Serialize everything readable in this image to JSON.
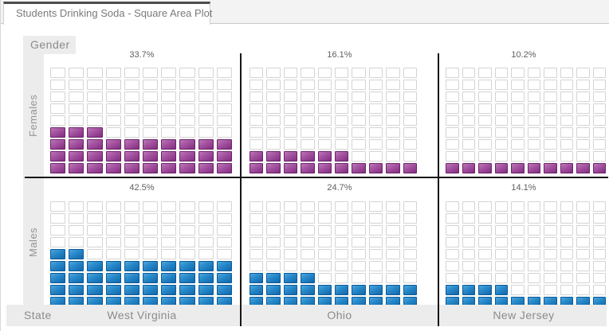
{
  "window": {
    "tab_title": "Students Drinking Soda - Square Area Plot"
  },
  "chart_data": {
    "type": "waffle",
    "title": "Students Drinking Soda - Square Area Plot",
    "row_dimension": {
      "label": "Gender",
      "categories": [
        "Females",
        "Males"
      ]
    },
    "col_dimension": {
      "label": "State",
      "categories": [
        "West Virginia",
        "Ohio",
        "New Jersey"
      ]
    },
    "grid": {
      "columns": 10,
      "rows": 9,
      "percent_per_square": 1
    },
    "panels": [
      {
        "row": "Females",
        "col": "West Virginia",
        "percent_label": "33.7%",
        "value": 33.7,
        "filled": 33
      },
      {
        "row": "Females",
        "col": "Ohio",
        "percent_label": "16.1%",
        "value": 16.1,
        "filled": 16
      },
      {
        "row": "Females",
        "col": "New Jersey",
        "percent_label": "10.2%",
        "value": 10.2,
        "filled": 10
      },
      {
        "row": "Males",
        "col": "West Virginia",
        "percent_label": "42.5%",
        "value": 42.5,
        "filled": 42
      },
      {
        "row": "Males",
        "col": "Ohio",
        "percent_label": "24.7%",
        "value": 24.7,
        "filled": 24
      },
      {
        "row": "Males",
        "col": "New Jersey",
        "percent_label": "14.1%",
        "value": 14.1,
        "filled": 14
      }
    ],
    "colors": {
      "females_fill": "#8a3387",
      "females_border": "#6b2169",
      "males_fill": "#1472b8",
      "males_border": "#0b5a99",
      "empty_square_border": "#d4d4d4",
      "facet_divider": "#161616",
      "header_background": "#ececec",
      "label_text": "#8b8b8b"
    },
    "layout": {
      "fill_order": "bottom-to-top, left-to-right",
      "legend": "none"
    }
  }
}
